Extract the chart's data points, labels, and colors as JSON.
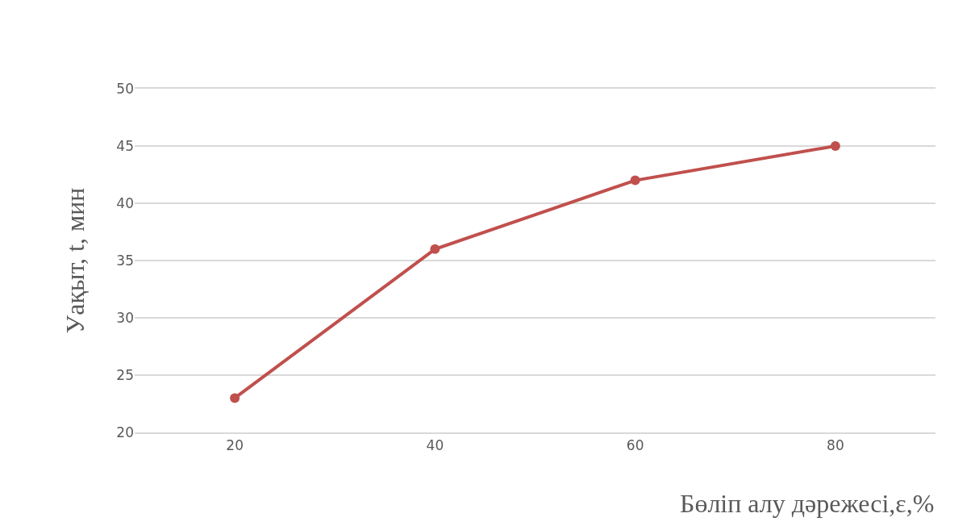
{
  "chart_data": {
    "type": "line",
    "xlabel": "Бөліп алу дәрежесі,ε,%",
    "ylabel": "Уақыт, t, мин",
    "categories": [
      "20",
      "40",
      "60",
      "80"
    ],
    "series": [
      {
        "color": "#c0504d",
        "values": [
          23,
          36,
          42,
          45
        ]
      }
    ],
    "ylim": [
      20,
      50
    ],
    "yticks": [
      20,
      25,
      30,
      35,
      40,
      45,
      50
    ],
    "grid": "y",
    "marker": "circle",
    "line_style": "solid"
  }
}
